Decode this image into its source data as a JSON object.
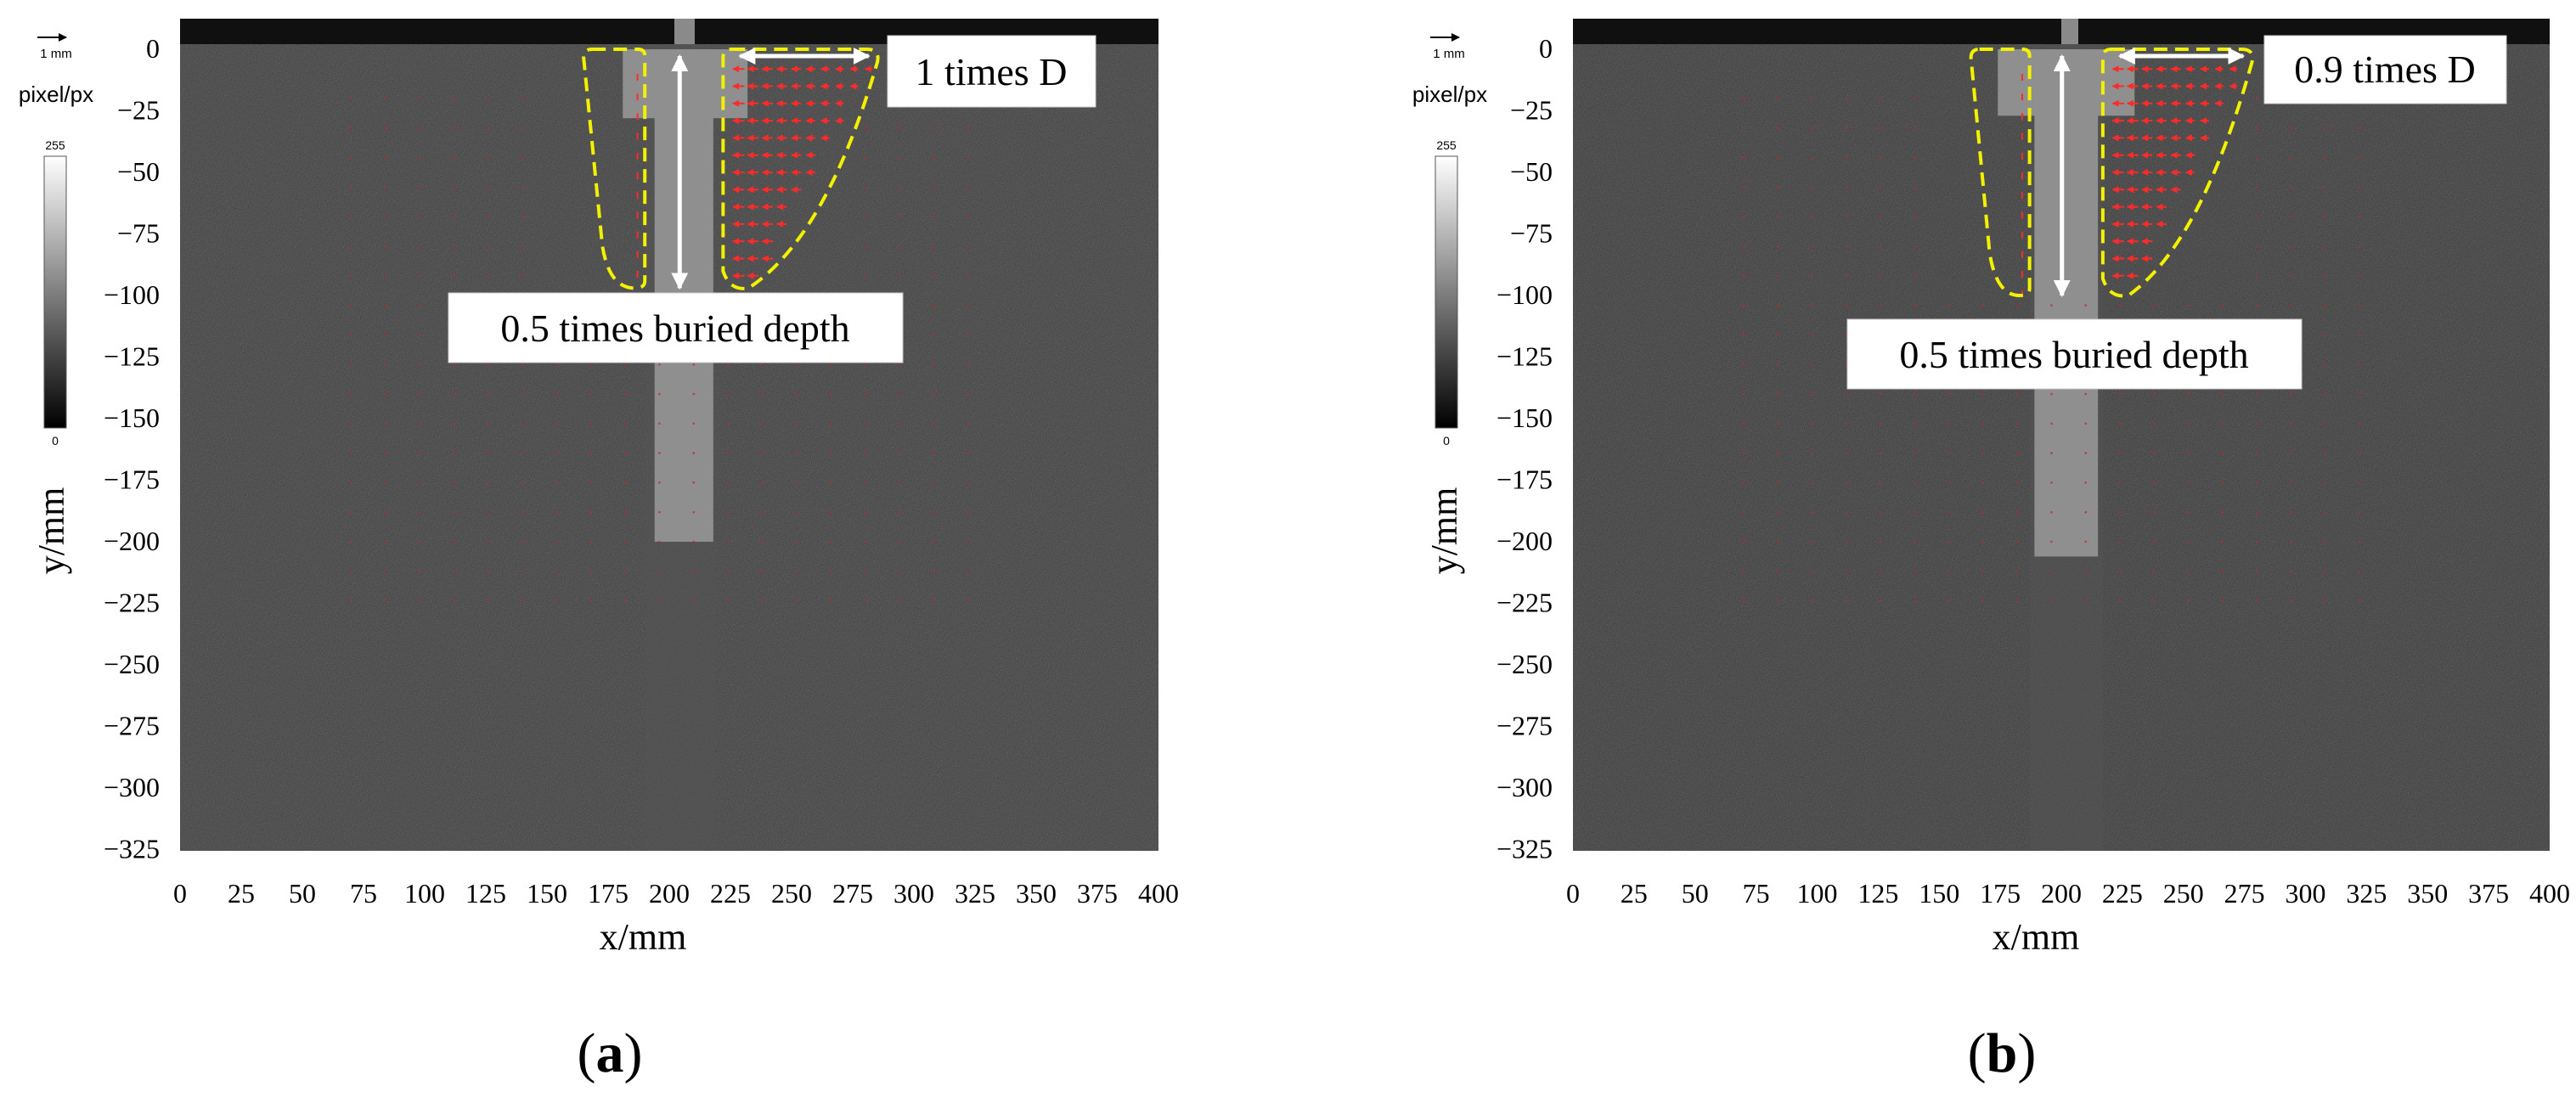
{
  "figure": {
    "panels": [
      {
        "id": "a",
        "label_open": "(",
        "label_letter": "a",
        "label_close": ")",
        "scale_arrow_text": "1 mm",
        "colorbar_title": "pixel/px",
        "colorbar_max": "255",
        "colorbar_min": "0",
        "annotation_width": "1 times  D",
        "annotation_depth": "0.5 times buried depth"
      },
      {
        "id": "b",
        "label_open": "(",
        "label_letter": "b",
        "label_close": ")",
        "scale_arrow_text": "1 mm",
        "colorbar_title": "pixel/px",
        "colorbar_max": "255",
        "colorbar_min": "0",
        "annotation_width": "0.9 times  D",
        "annotation_depth": "0.5 times buried depth"
      }
    ]
  },
  "chart_data": [
    {
      "type": "heatmap",
      "title": "",
      "xlabel": "x/mm",
      "ylabel": "y/mm",
      "xlim": [
        0,
        400
      ],
      "ylim": [
        -325,
        10
      ],
      "x_ticks": [
        "0",
        "25",
        "50",
        "75",
        "100",
        "125",
        "150",
        "175",
        "200",
        "225",
        "250",
        "275",
        "300",
        "325",
        "350",
        "375",
        "400"
      ],
      "y_ticks": [
        "0",
        "−25",
        "−50",
        "−75",
        "−100",
        "−125",
        "−150",
        "−175",
        "−200",
        "−225",
        "−250",
        "−275",
        "−300",
        "−325"
      ],
      "pile": {
        "x_left": 194,
        "x_right": 218,
        "bottom": -200
      },
      "pile_cap": {
        "x_left": 181,
        "x_right": 232,
        "bottom": -28
      },
      "displacement_zone_left": {
        "x_range": [
          165,
          190
        ],
        "depth": -97
      },
      "displacement_zone_right": {
        "x_range": [
          222,
          285
        ],
        "depth": -97
      },
      "annotation_width_value": 1.0,
      "annotation_depth_value": 0.5,
      "colorbar_range": [
        0,
        255
      ],
      "grid": false
    },
    {
      "type": "heatmap",
      "title": "",
      "xlabel": "x/mm",
      "ylabel": "y/mm",
      "xlim": [
        0,
        400
      ],
      "ylim": [
        -325,
        10
      ],
      "x_ticks": [
        "0",
        "25",
        "50",
        "75",
        "100",
        "125",
        "150",
        "175",
        "200",
        "225",
        "250",
        "275",
        "300",
        "325",
        "350",
        "375",
        "400"
      ],
      "y_ticks": [
        "0",
        "−25",
        "−50",
        "−75",
        "−100",
        "−125",
        "−150",
        "−175",
        "−200",
        "−225",
        "−250",
        "−275",
        "−300",
        "−325"
      ],
      "pile": {
        "x_left": 189,
        "x_right": 215,
        "bottom": -206
      },
      "pile_cap": {
        "x_left": 174,
        "x_right": 230,
        "bottom": -27
      },
      "displacement_zone_left": {
        "x_range": [
          163,
          187
        ],
        "depth": -100
      },
      "displacement_zone_right": {
        "x_range": [
          217,
          278
        ],
        "depth": -100
      },
      "annotation_width_value": 0.9,
      "annotation_depth_value": 0.5,
      "colorbar_range": [
        0,
        255
      ],
      "grid": false
    }
  ]
}
